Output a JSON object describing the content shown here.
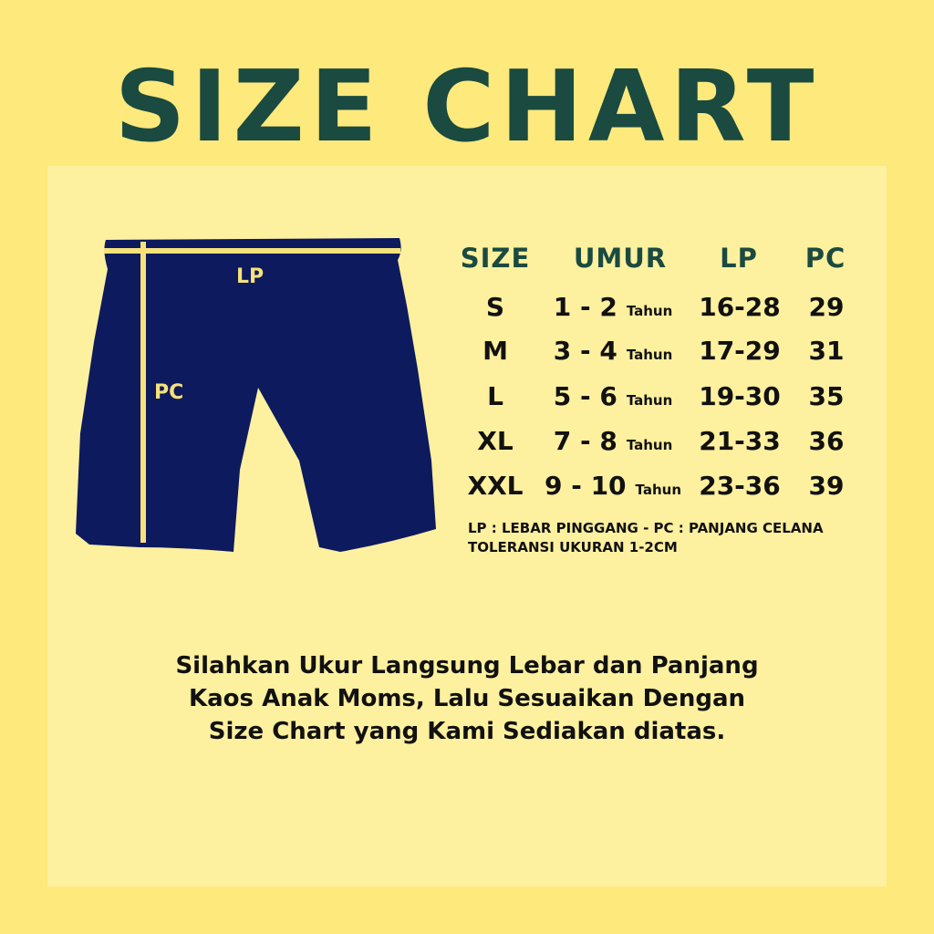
{
  "title": "SIZE CHART",
  "diagram": {
    "waist_label": "LP",
    "length_label": "PC",
    "garment_color": "#0d1a5e",
    "marker_color": "#f7e27a"
  },
  "table": {
    "headers": [
      "SIZE",
      "UMUR",
      "LP",
      "PC"
    ],
    "rows": [
      {
        "size": "S",
        "age": "1 - 2",
        "unit": "Tahun",
        "lp": "16-28",
        "pc": "29"
      },
      {
        "size": "M",
        "age": "3 - 4",
        "unit": "Tahun",
        "lp": "17-29",
        "pc": "31"
      },
      {
        "size": "L",
        "age": "5 - 6",
        "unit": "Tahun",
        "lp": "19-30",
        "pc": "35"
      },
      {
        "size": "XL",
        "age": "7 - 8",
        "unit": "Tahun",
        "lp": "21-33",
        "pc": "36"
      },
      {
        "size": "XXL",
        "age": "9 - 10",
        "unit": "Tahun",
        "lp": "23-36",
        "pc": "39"
      }
    ]
  },
  "notes": [
    "LP : LEBAR PINGGANG - PC : PANJANG CELANA",
    "TOLERANSI UKURAN 1-2CM"
  ],
  "instructions": [
    "Silahkan Ukur Langsung Lebar dan Panjang",
    "Kaos Anak Moms, Lalu Sesuaikan Dengan",
    "Size Chart yang Kami Sediakan diatas."
  ]
}
